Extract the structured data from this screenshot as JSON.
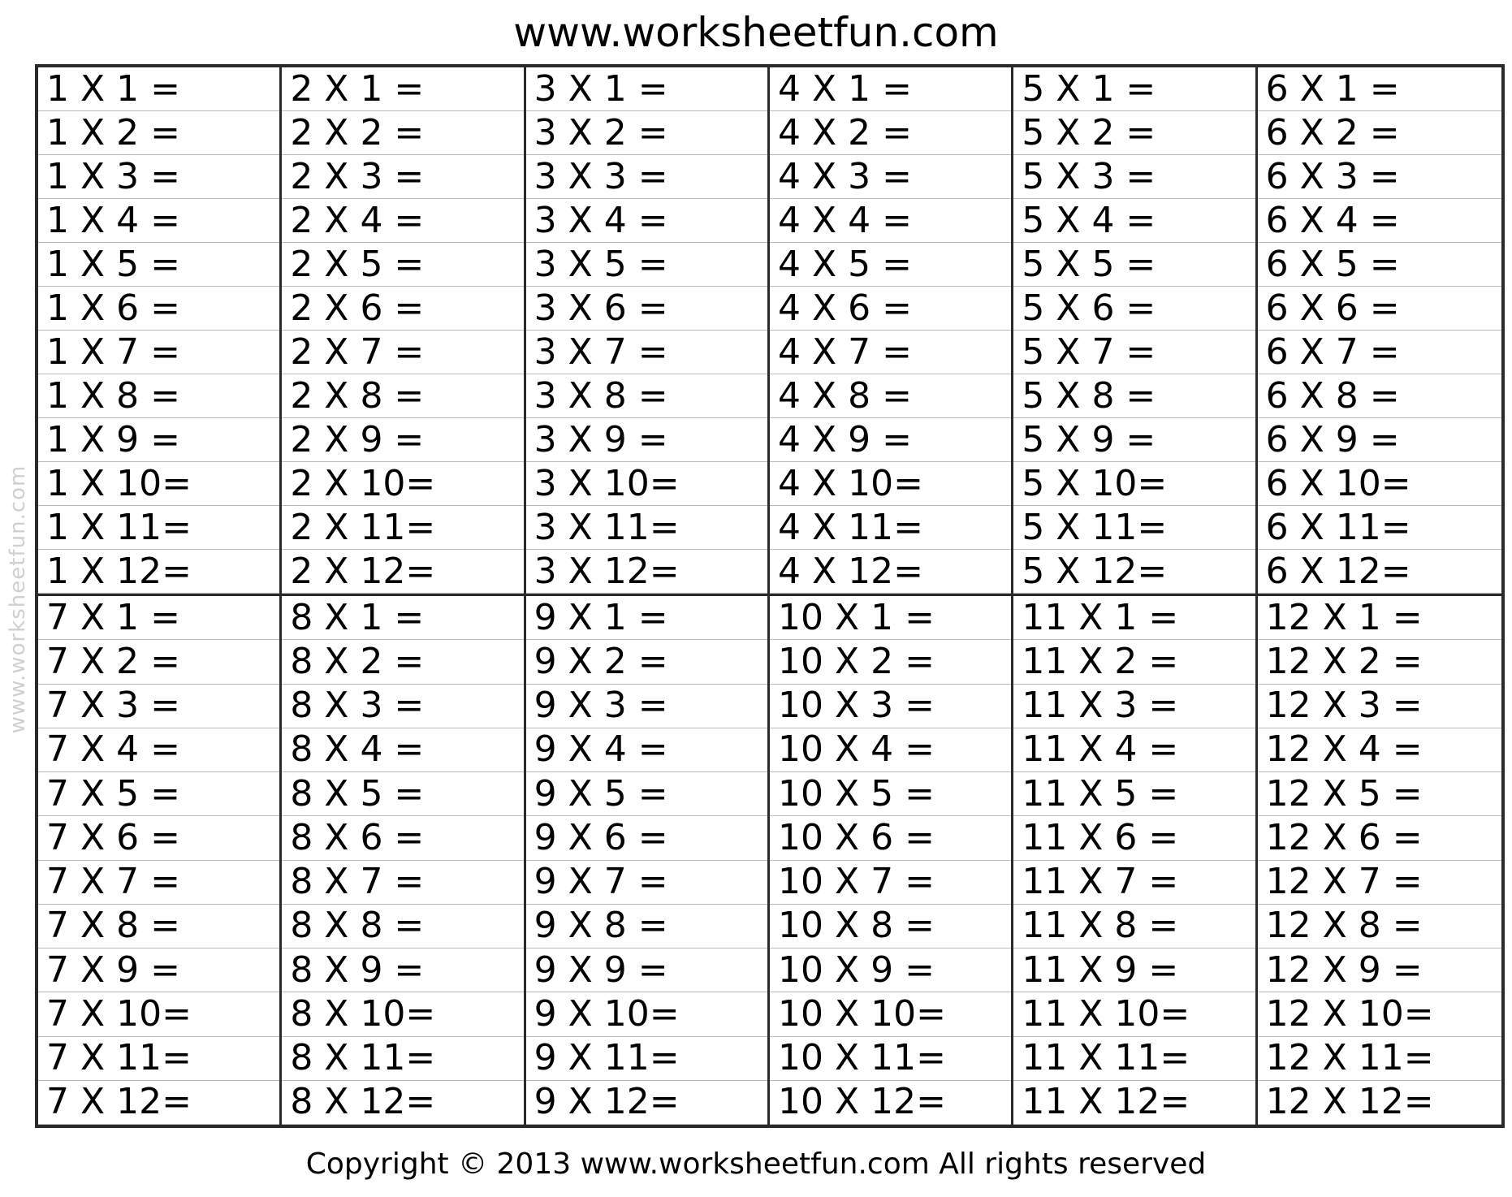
{
  "header": {
    "title": "www.worksheetfun.com"
  },
  "watermark": "www.worksheetfun.com",
  "footer": {
    "copyright": "Copyright © 2013 www.worksheetfun.com All rights reserved"
  },
  "blocks": [
    {
      "problems": [
        "1 X 1 =",
        "1 X 2 =",
        "1 X 3 =",
        "1 X 4 =",
        "1 X 5 =",
        "1 X 6 =",
        "1 X 7 =",
        "1 X 8 =",
        "1 X 9 =",
        "1 X 10=",
        "1 X 11=",
        "1 X 12="
      ]
    },
    {
      "problems": [
        "2 X 1 =",
        "2 X 2 =",
        "2 X 3 =",
        "2 X 4 =",
        "2 X 5 =",
        "2 X 6 =",
        "2 X 7 =",
        "2 X 8 =",
        "2 X 9 =",
        "2 X 10=",
        "2 X 11=",
        "2 X 12="
      ]
    },
    {
      "problems": [
        "3 X 1 =",
        "3 X 2 =",
        "3 X 3 =",
        "3 X 4 =",
        "3 X 5 =",
        "3 X 6 =",
        "3 X 7 =",
        "3 X 8 =",
        "3 X 9 =",
        "3 X 10=",
        "3 X 11=",
        "3 X 12="
      ]
    },
    {
      "problems": [
        "4 X 1 =",
        "4 X 2 =",
        "4 X 3 =",
        "4 X 4 =",
        "4 X 5 =",
        "4 X 6 =",
        "4 X 7 =",
        "4 X 8 =",
        "4 X 9 =",
        "4 X 10=",
        "4 X 11=",
        "4 X 12="
      ]
    },
    {
      "problems": [
        "5 X 1 =",
        "5 X 2 =",
        "5 X 3 =",
        "5 X 4 =",
        "5 X 5 =",
        "5 X 6 =",
        "5 X 7 =",
        "5 X 8 =",
        "5 X 9 =",
        "5 X 10=",
        "5 X 11=",
        "5 X 12="
      ]
    },
    {
      "problems": [
        "6 X 1 =",
        "6 X 2 =",
        "6 X 3 =",
        "6 X 4 =",
        "6 X 5 =",
        "6 X 6 =",
        "6 X 7 =",
        "6 X 8 =",
        "6 X 9 =",
        "6 X 10=",
        "6 X 11=",
        "6 X 12="
      ]
    },
    {
      "problems": [
        "7 X 1 =",
        "7 X 2 =",
        "7 X 3 =",
        "7 X 4 =",
        "7 X 5 =",
        "7 X 6 =",
        "7 X 7 =",
        "7 X 8 =",
        "7 X 9 =",
        "7 X 10=",
        "7 X 11=",
        "7 X 12="
      ]
    },
    {
      "problems": [
        "8 X 1 =",
        "8 X 2 =",
        "8 X 3 =",
        "8 X 4 =",
        "8 X 5 =",
        "8 X 6 =",
        "8 X 7 =",
        "8 X 8 =",
        "8 X 9 =",
        "8 X 10=",
        "8 X 11=",
        "8 X 12="
      ]
    },
    {
      "problems": [
        "9 X 1 =",
        "9 X 2 =",
        "9 X 3 =",
        "9 X 4 =",
        "9 X 5 =",
        "9 X 6 =",
        "9 X 7 =",
        "9 X 8 =",
        "9 X 9 =",
        "9 X 10=",
        "9 X 11=",
        "9 X 12="
      ]
    },
    {
      "problems": [
        "10 X 1 =",
        "10 X 2 =",
        "10 X 3 =",
        "10 X 4 =",
        "10 X 5 =",
        "10 X 6 =",
        "10 X 7 =",
        "10 X 8 =",
        "10 X 9 =",
        "10 X 10=",
        "10 X 11=",
        "10 X 12="
      ]
    },
    {
      "problems": [
        "11 X 1 =",
        "11 X 2 =",
        "11 X 3 =",
        "11 X 4 =",
        "11 X 5 =",
        "11 X 6 =",
        "11 X 7 =",
        "11 X 8 =",
        "11 X 9 =",
        "11 X 10=",
        "11 X 11=",
        "11 X 12="
      ]
    },
    {
      "problems": [
        "12 X 1 =",
        "12 X 2 =",
        "12 X 3 =",
        "12 X 4 =",
        "12 X 5 =",
        "12 X 6 =",
        "12 X 7 =",
        "12 X 8 =",
        "12 X 9 =",
        "12 X 10=",
        "12 X 11=",
        "12 X 12="
      ]
    }
  ]
}
